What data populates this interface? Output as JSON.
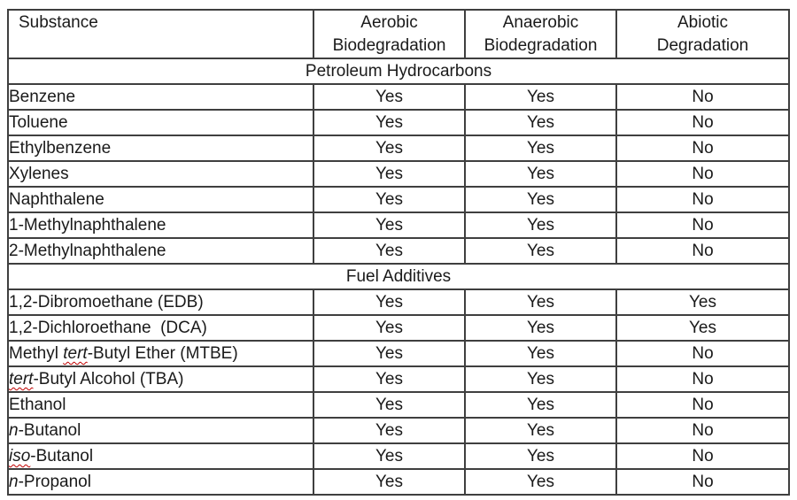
{
  "colors": {
    "table_border": "#3f3f3f",
    "text": "#1a1a1a",
    "spellcheck_squiggle": "#c00000",
    "background": "#ffffff"
  },
  "table": {
    "header": {
      "columns": [
        {
          "id": "substance",
          "lines": [
            "Substance"
          ]
        },
        {
          "id": "aerobic",
          "lines": [
            "Aerobic",
            "Biodegradation"
          ]
        },
        {
          "id": "anaerobic",
          "lines": [
            "Anaerobic",
            "Biodegradation"
          ]
        },
        {
          "id": "abiotic",
          "lines": [
            "Abiotic",
            "Degradation"
          ]
        }
      ]
    },
    "sections": [
      {
        "title": "Petroleum Hydrocarbons",
        "rows": [
          {
            "substance": [
              {
                "t": "Benzene"
              }
            ],
            "values": [
              "Yes",
              "Yes",
              "No"
            ]
          },
          {
            "substance": [
              {
                "t": "Toluene"
              }
            ],
            "values": [
              "Yes",
              "Yes",
              "No"
            ]
          },
          {
            "substance": [
              {
                "t": "Ethylbenzene"
              }
            ],
            "values": [
              "Yes",
              "Yes",
              "No"
            ]
          },
          {
            "substance": [
              {
                "t": "Xylenes"
              }
            ],
            "values": [
              "Yes",
              "Yes",
              "No"
            ]
          },
          {
            "substance": [
              {
                "t": "Naphthalene"
              }
            ],
            "values": [
              "Yes",
              "Yes",
              "No"
            ]
          },
          {
            "substance": [
              {
                "t": "1-Methylnaphthalene"
              }
            ],
            "values": [
              "Yes",
              "Yes",
              "No"
            ]
          },
          {
            "substance": [
              {
                "t": "2-Methylnaphthalene"
              }
            ],
            "values": [
              "Yes",
              "Yes",
              "No"
            ]
          }
        ]
      },
      {
        "title": "Fuel Additives",
        "rows": [
          {
            "substance": [
              {
                "t": "1,2-Dibromoethane (EDB)"
              }
            ],
            "values": [
              "Yes",
              "Yes",
              "Yes"
            ]
          },
          {
            "substance": [
              {
                "t": "1,2-Dichloroethane  (DCA)"
              }
            ],
            "values": [
              "Yes",
              "Yes",
              "Yes"
            ]
          },
          {
            "substance": [
              {
                "t": "Methyl "
              },
              {
                "t": "tert",
                "italic": true,
                "squiggle": true
              },
              {
                "t": "-Butyl Ether (MTBE)"
              }
            ],
            "values": [
              "Yes",
              "Yes",
              "No"
            ]
          },
          {
            "substance": [
              {
                "t": "tert",
                "italic": true,
                "squiggle": true
              },
              {
                "t": "-Butyl Alcohol (TBA)"
              }
            ],
            "values": [
              "Yes",
              "Yes",
              "No"
            ]
          },
          {
            "substance": [
              {
                "t": "Ethanol"
              }
            ],
            "values": [
              "Yes",
              "Yes",
              "No"
            ]
          },
          {
            "substance": [
              {
                "t": "n",
                "italic": true
              },
              {
                "t": "-Butanol"
              }
            ],
            "values": [
              "Yes",
              "Yes",
              "No"
            ]
          },
          {
            "substance": [
              {
                "t": "iso",
                "italic": true,
                "squiggle": true
              },
              {
                "t": "-Butanol"
              }
            ],
            "values": [
              "Yes",
              "Yes",
              "No"
            ]
          },
          {
            "substance": [
              {
                "t": "n",
                "italic": true
              },
              {
                "t": "-Propanol"
              }
            ],
            "values": [
              "Yes",
              "Yes",
              "No"
            ]
          }
        ]
      }
    ]
  }
}
